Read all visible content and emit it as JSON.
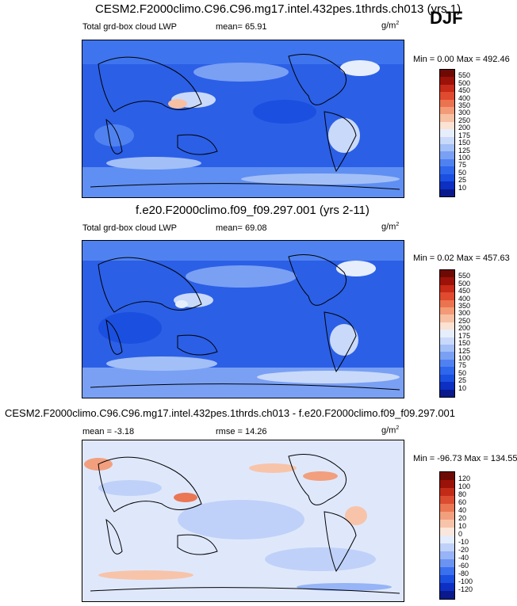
{
  "season": "DJF",
  "panels": [
    {
      "title": "CESM2.F2000climo.C96.C96.mg17.intel.432pes.1thrds.ch013 (yrs 1)",
      "left_label": "Total grd-box cloud LWP",
      "center_label": "mean=  65.91",
      "units": "g/m",
      "units_sup": "2",
      "minmax": "Min =   0.00 Max = 492.46"
    },
    {
      "title": "f.e20.F2000climo.f09_f09.297.001 (yrs 2-11)",
      "left_label": "Total grd-box cloud LWP",
      "center_label": "mean=  69.08",
      "units": "g/m",
      "units_sup": "2",
      "minmax": "Min =   0.02 Max = 457.63"
    },
    {
      "title": "CESM2.F2000climo.C96.C96.mg17.intel.432pes.1thrds.ch013 - f.e20.F2000climo.f09_f09.297.001",
      "left_label": "mean =  -3.18",
      "center_label": "rmse =  14.26",
      "units": "g/m",
      "units_sup": "2",
      "minmax": "Min = -96.73 Max = 134.55"
    }
  ],
  "chart_data": [
    {
      "type": "heatmap",
      "title": "CESM2.F2000climo.C96.C96.mg17.intel.432pes.1thrds.ch013 (yrs 1)",
      "variable": "Total grd-box cloud LWP",
      "units": "g/m2",
      "mean": 65.91,
      "min": 0.0,
      "max": 492.46,
      "colorbar_levels": [
        10,
        25,
        50,
        75,
        100,
        125,
        150,
        175,
        200,
        250,
        300,
        350,
        400,
        450,
        500,
        550
      ],
      "colorbar_colors": [
        "#0a1a8c",
        "#0d2fc2",
        "#1a4fe0",
        "#2e66ec",
        "#4f82f0",
        "#7aa0f4",
        "#a3bff7",
        "#c9d9fa",
        "#e6eefc",
        "#fbe2d2",
        "#f7c0a3",
        "#f39a76",
        "#ec7350",
        "#e04a2e",
        "#c62a18",
        "#9c1208",
        "#6e0a04"
      ]
    },
    {
      "type": "heatmap",
      "title": "f.e20.F2000climo.f09_f09.297.001 (yrs 2-11)",
      "variable": "Total grd-box cloud LWP",
      "units": "g/m2",
      "mean": 69.08,
      "min": 0.02,
      "max": 457.63,
      "colorbar_levels": [
        10,
        25,
        50,
        75,
        100,
        125,
        150,
        175,
        200,
        250,
        300,
        350,
        400,
        450,
        500,
        550
      ],
      "colorbar_colors": [
        "#0a1a8c",
        "#0d2fc2",
        "#1a4fe0",
        "#2e66ec",
        "#4f82f0",
        "#7aa0f4",
        "#a3bff7",
        "#c9d9fa",
        "#e6eefc",
        "#fbe2d2",
        "#f7c0a3",
        "#f39a76",
        "#ec7350",
        "#e04a2e",
        "#c62a18",
        "#9c1208",
        "#6e0a04"
      ]
    },
    {
      "type": "heatmap",
      "title": "CESM2.F2000climo.C96.C96.mg17.intel.432pes.1thrds.ch013 - f.e20.F2000climo.f09_f09.297.001",
      "units": "g/m2",
      "mean": -3.18,
      "rmse": 14.26,
      "min": -96.73,
      "max": 134.55,
      "colorbar_levels": [
        -120,
        -100,
        -80,
        -60,
        -40,
        -20,
        -10,
        0,
        10,
        20,
        40,
        60,
        80,
        100,
        120
      ],
      "colorbar_colors": [
        "#0a1a8c",
        "#0d2fc2",
        "#1a4fe0",
        "#3a70ee",
        "#6a93f2",
        "#96b4f6",
        "#bfd1f9",
        "#e3ecfc",
        "#fbe6dc",
        "#f7c4aa",
        "#f29f7e",
        "#ea7654",
        "#dc4c30",
        "#c22b18",
        "#9a1208",
        "#6e0a04"
      ]
    }
  ]
}
